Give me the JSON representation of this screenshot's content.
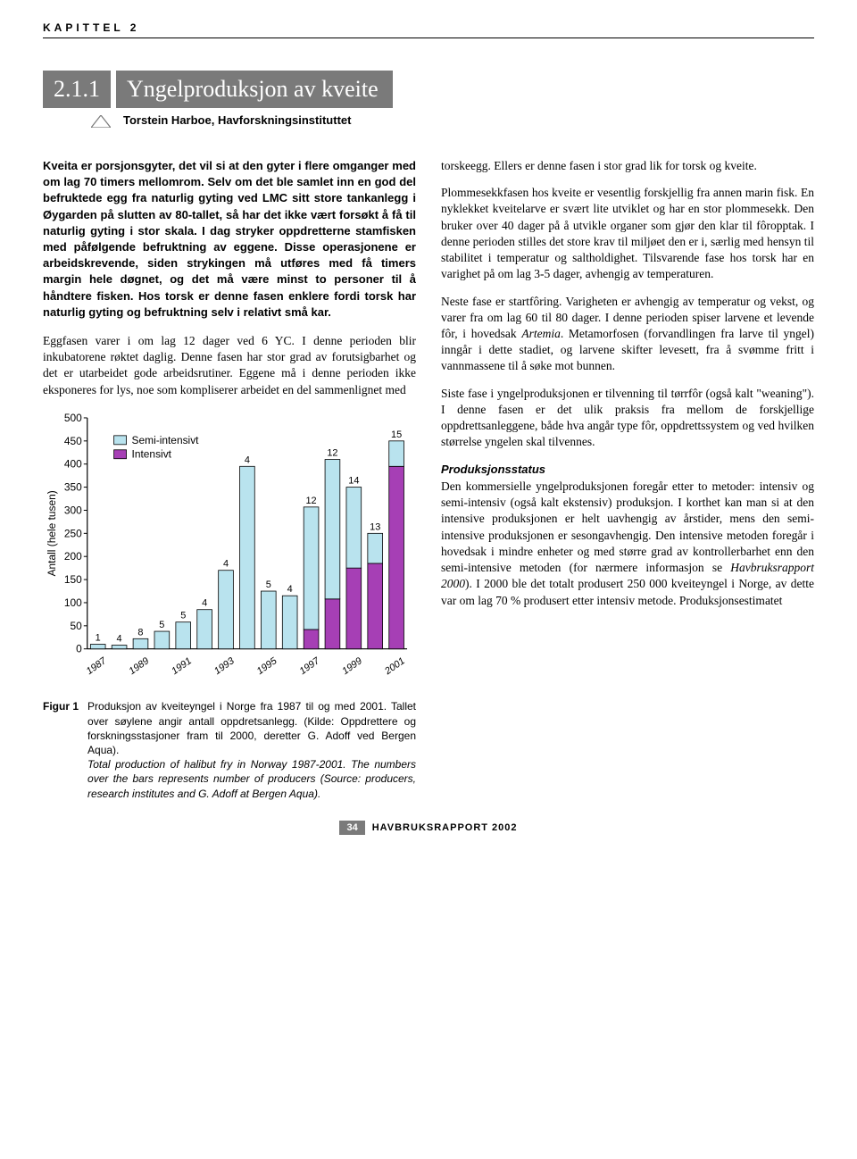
{
  "chapter_label": "KAPITTEL 2",
  "section_number": "2.1.1",
  "section_title": "Yngelproduksjon av kveite",
  "author_line": "Torstein Harboe, Havforskningsinstituttet",
  "left": {
    "intro_bold": "Kveita er porsjonsgyter, det vil si at den gyter i flere omganger med om lag 70 timers mellomrom. Selv om det ble samlet inn en god del befruktede egg fra naturlig gyting ved LMC sitt store tankanlegg i Øygarden på slutten av 80-tallet, så har det ikke vært forsøkt å få til naturlig gyting i stor skala. I dag stryker oppdretterne stamfisken med påfølgende befruktning av eggene. Disse operasjonene er arbeidskrevende, siden strykingen må utføres med få timers margin hele døgnet, og det må være minst to personer til å håndtere fisken. Hos torsk er denne fasen enklere fordi torsk har naturlig gyting og befruktning selv i relativt små kar.",
    "para1": "Eggfasen varer i om lag 12 dager ved 6 YC. I denne perioden blir inkubatorene røktet daglig. Denne fasen har stor grad av forutsigbarhet og det er utarbeidet gode arbeidsrutiner. Eggene må i denne perioden ikke eksponeres for lys, noe som kompliserer arbeidet en del sammenlignet med"
  },
  "right": {
    "para1": "torskeegg. Ellers er denne fasen i stor grad lik for torsk og kveite.",
    "para2": "Plommesekkfasen hos kveite er vesentlig forskjellig fra annen marin fisk. En nyklekket kveitelarve er svært lite utviklet og har en stor plommesekk. Den bruker over 40 dager på å utvikle organer som gjør den klar til fôropptak. I denne perioden stilles det store krav til miljøet den er i, særlig med hensyn til stabilitet i temperatur og saltholdighet. Tilsvarende fase hos torsk har en varighet på om lag 3-5 dager, avhengig av temperaturen.",
    "para3a": "Neste fase er startfôring. Varigheten er avhengig av temperatur og vekst, og varer fra om lag 60 til 80 dager. I denne perioden spiser larvene et levende fôr, i hovedsak ",
    "para3_italic": "Artemia",
    "para3b": ". Metamorfosen (forvandlingen fra larve til yngel) inngår i dette stadiet, og larvene skifter levesett, fra å svømme fritt i vannmassene til å søke mot bunnen.",
    "para4": "Siste fase i yngelproduksjonen er tilvenning til tørrfôr (også kalt \"weaning\"). I denne fasen er det ulik praksis fra mellom de forskjellige oppdrettsanleggene, både hva angår type fôr, oppdrettssystem og ved hvilken størrelse yngelen skal tilvennes.",
    "subhead": "Produksjonsstatus",
    "para5a": "Den kommersielle yngelproduksjonen foregår etter to metoder: intensiv og semi-intensiv (også kalt ekstensiv) produksjon. I korthet kan man si at den intensive produksjonen er helt uavhengig av årstider, mens den semi-intensive produksjonen er sesongavhengig. Den intensive metoden foregår i hovedsak i mindre enheter og med større grad av kontrollerbarhet enn den semi-intensive metoden (for nærmere informasjon se ",
    "para5_italic": "Havbruksrapport 2000",
    "para5b": "). I 2000 ble det totalt produsert 250 000 kveiteyngel i Norge, av dette var om lag 70 % produsert etter intensiv metode. Produksjonsestimatet"
  },
  "chart": {
    "y_label": "Antall (hele tusen)",
    "y_max": 500,
    "y_step": 50,
    "legend": [
      "Semi-intensivt",
      "Intensivt"
    ],
    "legend_colors": [
      "#b9e3ee",
      "#a63fb5"
    ],
    "x_labels": [
      "1987",
      "1989",
      "1991",
      "1993",
      "1995",
      "1997",
      "1999",
      "2001"
    ],
    "bars": [
      {
        "semi": 10,
        "int": 0,
        "label": "1"
      },
      {
        "semi": 8,
        "int": 0,
        "label": "4"
      },
      {
        "semi": 22,
        "int": 0,
        "label": "8"
      },
      {
        "semi": 38,
        "int": 0,
        "label": "5"
      },
      {
        "semi": 58,
        "int": 0,
        "label": "5"
      },
      {
        "semi": 85,
        "int": 0,
        "label": "4"
      },
      {
        "semi": 170,
        "int": 0,
        "label": "4"
      },
      {
        "semi": 395,
        "int": 0,
        "label": "4"
      },
      {
        "semi": 125,
        "int": 0,
        "label": "5"
      },
      {
        "semi": 115,
        "int": 0,
        "label": "4"
      },
      {
        "semi": 265,
        "int": 42,
        "label": "12"
      },
      {
        "semi": 302,
        "int": 108,
        "label": "12"
      },
      {
        "semi": 175,
        "int": 175,
        "label": "14"
      },
      {
        "semi": 65,
        "int": 185,
        "label": "13"
      },
      {
        "semi": 55,
        "int": 395,
        "label": "15"
      }
    ],
    "bar_stroke": "#000000",
    "axis_font": 12,
    "label_font": 11,
    "background": "#ffffff"
  },
  "figure": {
    "label": "Figur 1",
    "caption_no": "Produksjon av kveiteyngel i Norge fra 1987 til og med 2001. Tallet over søylene angir antall oppdretsanlegg. (Kilde: Oppdrettere og forskningsstasjoner fram til 2000, deretter G. Adoff ved Bergen Aqua).",
    "caption_it": "Total production of halibut fry in Norway 1987-2001. The numbers over the bars represents number of producers (Source: producers, research institutes and G. Adoff at Bergen Aqua)."
  },
  "footer": {
    "page": "34",
    "title": "HAVBRUKSRAPPORT 2002"
  }
}
